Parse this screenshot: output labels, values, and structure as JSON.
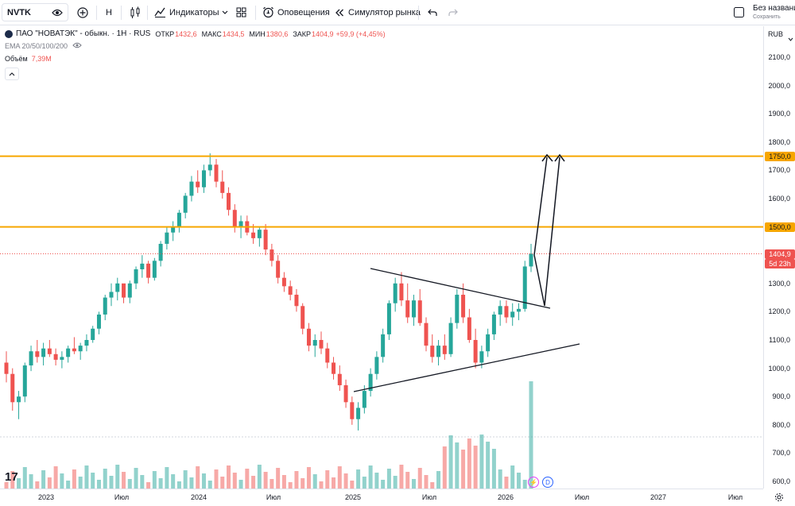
{
  "toolbar": {
    "symbol": "NVTK",
    "interval": "H",
    "indicators_label": "Индикаторы",
    "alerts_label": "Оповещения",
    "replay_label": "Симулятор рынка",
    "layout_name": "Без названия",
    "save_label": "Сохранить"
  },
  "legend": {
    "title": "ПАО \"НОВАТЭК\" - обыкн. · 1Н · RUS",
    "open_label": "ОТКР",
    "open": "1432,6",
    "high_label": "МАКС",
    "high": "1434,5",
    "low_label": "МИН",
    "low": "1380,6",
    "close_label": "ЗАКР",
    "close": "1404,9",
    "change": "+59,9 (+4,45%)",
    "ema_label": "EMA 20/50/100/200",
    "volume_label": "Объём",
    "volume_value": "7,39М"
  },
  "price_axis": {
    "currency": "RUB",
    "ticks": [
      "2100,0",
      "2000,0",
      "1900,0",
      "1800,0",
      "1700,0",
      "1600,0",
      "1500,0",
      "1400,0",
      "1300,0",
      "1200,0",
      "1100,0",
      "1000,0",
      "900,0",
      "800,0",
      "700,0",
      "600,0"
    ],
    "level_1750_label": "1750,0",
    "level_1500_label": "1500,0",
    "last_price_label": "1404,9",
    "countdown_label": "5d 23h"
  },
  "time_axis": {
    "ticks": [
      "2023",
      "Июл",
      "2024",
      "Июл",
      "2025",
      "Июл",
      "2026",
      "Июл",
      "2027",
      "Июл"
    ]
  },
  "chart_data": {
    "type": "candlestick",
    "symbol": "NVTK",
    "horizontal_levels": [
      1750,
      1500
    ],
    "last_price": 1404.9,
    "ohlc_approx": [
      [
        1020,
        1060,
        950,
        980
      ],
      [
        980,
        1000,
        850,
        880
      ],
      [
        880,
        920,
        820,
        900
      ],
      [
        900,
        1020,
        880,
        1010
      ],
      [
        1010,
        1080,
        990,
        1060
      ],
      [
        1060,
        1100,
        1020,
        1040
      ],
      [
        1040,
        1090,
        1010,
        1070
      ],
      [
        1070,
        1100,
        1040,
        1050
      ],
      [
        1050,
        1070,
        1010,
        1030
      ],
      [
        1030,
        1060,
        1000,
        1040
      ],
      [
        1040,
        1080,
        1020,
        1070
      ],
      [
        1070,
        1110,
        1050,
        1060
      ],
      [
        1060,
        1090,
        1030,
        1080
      ],
      [
        1080,
        1120,
        1060,
        1100
      ],
      [
        1100,
        1150,
        1090,
        1140
      ],
      [
        1140,
        1200,
        1120,
        1190
      ],
      [
        1190,
        1260,
        1170,
        1250
      ],
      [
        1250,
        1300,
        1220,
        1270
      ],
      [
        1270,
        1320,
        1240,
        1300
      ],
      [
        1300,
        1290,
        1230,
        1250
      ],
      [
        1250,
        1310,
        1230,
        1300
      ],
      [
        1300,
        1360,
        1280,
        1350
      ],
      [
        1350,
        1400,
        1320,
        1370
      ],
      [
        1370,
        1380,
        1300,
        1320
      ],
      [
        1320,
        1390,
        1310,
        1380
      ],
      [
        1380,
        1450,
        1360,
        1440
      ],
      [
        1440,
        1500,
        1420,
        1480
      ],
      [
        1480,
        1520,
        1450,
        1500
      ],
      [
        1500,
        1560,
        1480,
        1550
      ],
      [
        1550,
        1620,
        1530,
        1610
      ],
      [
        1610,
        1680,
        1590,
        1660
      ],
      [
        1660,
        1700,
        1620,
        1640
      ],
      [
        1640,
        1720,
        1620,
        1700
      ],
      [
        1700,
        1760,
        1680,
        1720
      ],
      [
        1720,
        1740,
        1640,
        1660
      ],
      [
        1660,
        1700,
        1600,
        1620
      ],
      [
        1620,
        1640,
        1540,
        1560
      ],
      [
        1560,
        1580,
        1480,
        1500
      ],
      [
        1500,
        1540,
        1460,
        1520
      ],
      [
        1520,
        1540,
        1470,
        1480
      ],
      [
        1480,
        1510,
        1440,
        1460
      ],
      [
        1460,
        1500,
        1430,
        1490
      ],
      [
        1490,
        1510,
        1400,
        1420
      ],
      [
        1420,
        1440,
        1360,
        1380
      ],
      [
        1380,
        1400,
        1300,
        1320
      ],
      [
        1320,
        1340,
        1270,
        1290
      ],
      [
        1290,
        1310,
        1240,
        1260
      ],
      [
        1260,
        1280,
        1200,
        1220
      ],
      [
        1220,
        1230,
        1120,
        1140
      ],
      [
        1140,
        1160,
        1060,
        1080
      ],
      [
        1080,
        1120,
        1040,
        1100
      ],
      [
        1100,
        1130,
        1050,
        1070
      ],
      [
        1070,
        1090,
        1000,
        1020
      ],
      [
        1020,
        1040,
        960,
        980
      ],
      [
        980,
        1010,
        920,
        940
      ],
      [
        940,
        960,
        860,
        880
      ],
      [
        880,
        900,
        800,
        820
      ],
      [
        820,
        880,
        780,
        860
      ],
      [
        860,
        940,
        840,
        920
      ],
      [
        920,
        1000,
        900,
        980
      ],
      [
        980,
        1060,
        960,
        1040
      ],
      [
        1040,
        1140,
        1020,
        1120
      ],
      [
        1120,
        1240,
        1100,
        1230
      ],
      [
        1230,
        1320,
        1200,
        1300
      ],
      [
        1300,
        1340,
        1220,
        1240
      ],
      [
        1240,
        1300,
        1160,
        1180
      ],
      [
        1180,
        1260,
        1150,
        1240
      ],
      [
        1240,
        1280,
        1150,
        1160
      ],
      [
        1160,
        1180,
        1060,
        1080
      ],
      [
        1080,
        1120,
        1020,
        1040
      ],
      [
        1040,
        1100,
        1010,
        1080
      ],
      [
        1080,
        1120,
        1030,
        1050
      ],
      [
        1050,
        1180,
        1040,
        1160
      ],
      [
        1160,
        1280,
        1140,
        1260
      ],
      [
        1260,
        1300,
        1160,
        1180
      ],
      [
        1180,
        1210,
        1090,
        1100
      ],
      [
        1100,
        1140,
        1000,
        1020
      ],
      [
        1020,
        1080,
        1000,
        1060
      ],
      [
        1060,
        1140,
        1040,
        1120
      ],
      [
        1120,
        1200,
        1100,
        1190
      ],
      [
        1190,
        1240,
        1150,
        1220
      ],
      [
        1220,
        1240,
        1160,
        1180
      ],
      [
        1180,
        1230,
        1150,
        1200
      ],
      [
        1200,
        1230,
        1170,
        1210
      ],
      [
        1210,
        1380,
        1200,
        1360
      ],
      [
        1360,
        1440,
        1340,
        1405
      ]
    ]
  }
}
